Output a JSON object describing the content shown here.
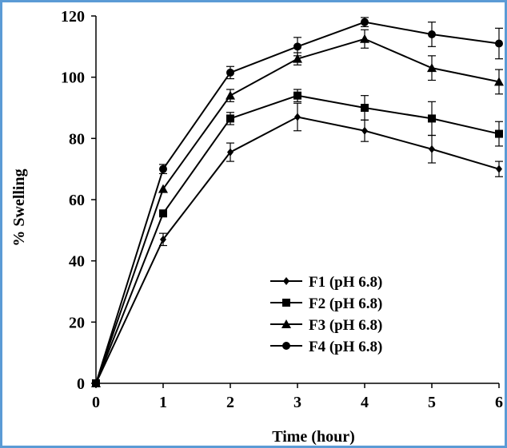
{
  "chart_data": {
    "type": "line",
    "title": "",
    "xlabel": "Time (hour)",
    "ylabel": "% Swelling",
    "xlim": [
      0,
      6
    ],
    "ylim": [
      0,
      120
    ],
    "x_ticks": [
      "0",
      "1",
      "2",
      "3",
      "4",
      "5",
      "6"
    ],
    "y_ticks": [
      "0",
      "20",
      "40",
      "60",
      "80",
      "100",
      "120"
    ],
    "grid": false,
    "legend_position": "bottom-right",
    "border_color": "#5b9bd5",
    "line_color": "#000000",
    "x": [
      0,
      1,
      2,
      3,
      4,
      5,
      6
    ],
    "series": [
      {
        "name": "F1 (pH 6.8)",
        "marker": "diamond",
        "values": [
          0,
          47,
          75.5,
          87,
          82.5,
          76.5,
          70
        ],
        "errors": [
          0,
          2,
          3,
          4.5,
          3.5,
          4.5,
          2.5
        ]
      },
      {
        "name": "F2 (pH 6.8)",
        "marker": "square",
        "values": [
          0,
          55.5,
          86.5,
          94,
          90,
          86.5,
          81.5
        ],
        "errors": [
          0,
          0,
          2,
          2,
          4,
          5.5,
          4
        ]
      },
      {
        "name": "F3 (pH 6.8)",
        "marker": "triangle",
        "values": [
          0,
          63.5,
          94,
          106,
          112.5,
          103,
          98.5
        ],
        "errors": [
          0,
          0,
          2,
          2,
          3,
          4,
          4
        ]
      },
      {
        "name": "F4 (pH 6.8)",
        "marker": "circle",
        "values": [
          0,
          70,
          101.5,
          110,
          118,
          114,
          111
        ],
        "errors": [
          0,
          1.5,
          2,
          3,
          1.5,
          4,
          5
        ]
      }
    ]
  }
}
